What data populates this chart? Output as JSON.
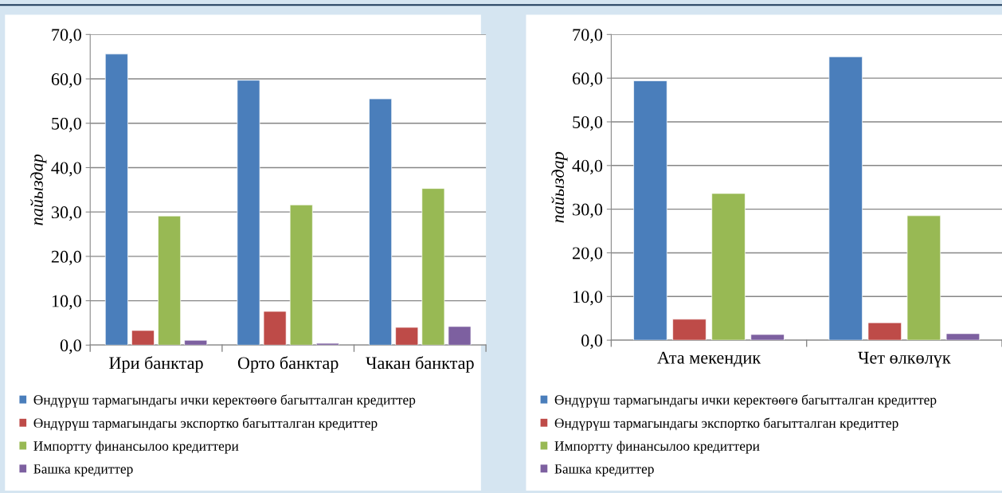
{
  "chart_data": [
    {
      "type": "bar",
      "ylabel": "пайыздар",
      "categories": [
        "Ири банктар",
        "Орто банктар",
        "Чакан банктар"
      ],
      "series": [
        {
          "name": "Өндүрүш тармагындагы ички керектөөгө багытталган кредиттер",
          "color": "#4a7ebb",
          "values": [
            65.6,
            59.7,
            55.5
          ]
        },
        {
          "name": "Өндүрүш тармагындагы экспортко багытталган кредиттер",
          "color": "#be4b48",
          "values": [
            3.3,
            7.6,
            4.0
          ]
        },
        {
          "name": "Импортту финансылоо кредиттери",
          "color": "#98b954",
          "values": [
            29.1,
            31.6,
            35.3
          ]
        },
        {
          "name": "Башка кредиттер",
          "color": "#7d60a0",
          "values": [
            1.1,
            0.4,
            4.2
          ]
        }
      ],
      "ylim": [
        0,
        70
      ],
      "yticks": [
        {
          "value": 0,
          "label": "0,0"
        },
        {
          "value": 10,
          "label": "10,0"
        },
        {
          "value": 20,
          "label": "20,0"
        },
        {
          "value": 30,
          "label": "30,0"
        },
        {
          "value": 40,
          "label": "40,0"
        },
        {
          "value": 50,
          "label": "50,0"
        },
        {
          "value": 60,
          "label": "60,0"
        },
        {
          "value": 70,
          "label": "70,0"
        }
      ],
      "grid": "y",
      "legend": "bottom"
    },
    {
      "type": "bar",
      "ylabel": "пайыздар",
      "categories": [
        "Ата мекендик",
        "Чет өлкөлүк"
      ],
      "series": [
        {
          "name": "Өндүрүш тармагындагы ички керектөөгө багытталган кредиттер",
          "color": "#4a7ebb",
          "values": [
            59.4,
            64.9
          ]
        },
        {
          "name": "Өндүрүш тармагындагы экспортко багытталган кредиттер",
          "color": "#be4b48",
          "values": [
            4.8,
            4.0
          ]
        },
        {
          "name": "Импортту финансылоо кредиттери",
          "color": "#98b954",
          "values": [
            33.6,
            28.5
          ]
        },
        {
          "name": "Башка кредиттер",
          "color": "#7d60a0",
          "values": [
            1.3,
            1.5
          ]
        }
      ],
      "ylim": [
        0,
        70
      ],
      "yticks": [
        {
          "value": 0,
          "label": "0,0"
        },
        {
          "value": 10,
          "label": "10,0"
        },
        {
          "value": 20,
          "label": "20,0"
        },
        {
          "value": 30,
          "label": "30,0"
        },
        {
          "value": 40,
          "label": "40,0"
        },
        {
          "value": 50,
          "label": "50,0"
        },
        {
          "value": 60,
          "label": "60,0"
        },
        {
          "value": 70,
          "label": "70,0"
        }
      ],
      "grid": "y",
      "legend": "bottom"
    }
  ]
}
